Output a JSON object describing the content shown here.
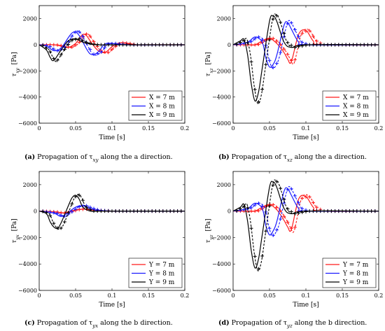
{
  "colors": {
    "red": "#ff1a1a",
    "blue": "#1a1aff",
    "black": "#000000"
  },
  "chart_data": [
    {
      "type": "line",
      "panel": "a",
      "caption_letter": "(a)",
      "caption_text": "Propagation of τ",
      "caption_sub": "xy",
      "caption_tail": " along the a direction.",
      "ylabel": "τ",
      "ylabel_sub": "xy",
      "ylabel_unit": "[Pa]",
      "xlabel": "Time [s]",
      "xlim": [
        0,
        0.2
      ],
      "ylim": [
        -6000,
        3000
      ],
      "xticks": [
        "0",
        "0.05",
        "0.1",
        "0.15",
        "0.2"
      ],
      "yticks": [
        "2000",
        "0",
        "−2000",
        "−4000",
        "−6000"
      ],
      "legend": "bottom-right",
      "linestyles": "solid = model, dashed with + = measured",
      "series": [
        {
          "name": "X = 7 m",
          "color": "red",
          "x": [
            0,
            0.02,
            0.03,
            0.04,
            0.05,
            0.055,
            0.06,
            0.065,
            0.07,
            0.08,
            0.09,
            0.1,
            0.11,
            0.12,
            0.13,
            0.15,
            0.2
          ],
          "y": [
            0,
            0,
            -100,
            -200,
            100,
            500,
            800,
            700,
            300,
            -400,
            -600,
            -150,
            150,
            100,
            0,
            0,
            0
          ]
        },
        {
          "name": "X = 8 m",
          "color": "blue",
          "x": [
            0,
            0.01,
            0.02,
            0.03,
            0.04,
            0.045,
            0.05,
            0.055,
            0.06,
            0.07,
            0.08,
            0.09,
            0.1,
            0.12,
            0.2
          ],
          "y": [
            0,
            -100,
            -450,
            -250,
            550,
            900,
            1000,
            700,
            200,
            -700,
            -600,
            50,
            100,
            0,
            0
          ]
        },
        {
          "name": "X = 9 m",
          "color": "black",
          "x": [
            0,
            0.01,
            0.015,
            0.02,
            0.03,
            0.04,
            0.05,
            0.06,
            0.07,
            0.08,
            0.1,
            0.2
          ],
          "y": [
            0,
            -400,
            -950,
            -1200,
            -400,
            300,
            450,
            200,
            50,
            0,
            0,
            0
          ]
        }
      ]
    },
    {
      "type": "line",
      "panel": "b",
      "caption_letter": "(b)",
      "caption_text": "Propagation of τ",
      "caption_sub": "xz",
      "caption_tail": " along the a direction.",
      "ylabel": "τ",
      "ylabel_sub": "xz",
      "ylabel_unit": "[Pa]",
      "xlabel": "Time [s]",
      "xlim": [
        0,
        0.2
      ],
      "ylim": [
        -6000,
        3000
      ],
      "xticks": [
        "0",
        "0.05",
        "0.1",
        "0.15",
        "0.2"
      ],
      "yticks": [
        "2000",
        "0",
        "−2000",
        "−4000",
        "−6000"
      ],
      "legend": "bottom-right",
      "series": [
        {
          "name": "X = 7 m",
          "color": "red",
          "x": [
            0,
            0.02,
            0.03,
            0.04,
            0.05,
            0.06,
            0.07,
            0.075,
            0.08,
            0.09,
            0.1,
            0.11,
            0.12,
            0.2
          ],
          "y": [
            0,
            0,
            0,
            300,
            500,
            100,
            -600,
            -1100,
            -1300,
            800,
            1100,
            300,
            0,
            0
          ]
        },
        {
          "name": "X = 8 m",
          "color": "blue",
          "x": [
            0,
            0.02,
            0.03,
            0.04,
            0.045,
            0.05,
            0.055,
            0.06,
            0.07,
            0.075,
            0.08,
            0.09,
            0.1,
            0.2
          ],
          "y": [
            0,
            200,
            600,
            200,
            -1000,
            -1700,
            -1500,
            -800,
            1500,
            1700,
            1200,
            200,
            0,
            0
          ]
        },
        {
          "name": "X = 9 m",
          "color": "black",
          "x": [
            0,
            0.01,
            0.015,
            0.02,
            0.025,
            0.03,
            0.035,
            0.04,
            0.05,
            0.055,
            0.06,
            0.07,
            0.08,
            0.1,
            0.2
          ],
          "y": [
            0,
            300,
            400,
            -800,
            -3000,
            -4300,
            -3600,
            -1800,
            1800,
            2200,
            1800,
            200,
            -200,
            0,
            0
          ]
        }
      ]
    },
    {
      "type": "line",
      "panel": "c",
      "caption_letter": "(c)",
      "caption_text": "Propagation of τ",
      "caption_sub": "yx",
      "caption_tail": " along the b direction.",
      "ylabel": "τ",
      "ylabel_sub": "yx",
      "ylabel_unit": "[Pa]",
      "xlabel": "Time [s]",
      "xlim": [
        0,
        0.2
      ],
      "ylim": [
        -6000,
        3000
      ],
      "xticks": [
        "0",
        "0.05",
        "0.1",
        "0.15",
        "0.2"
      ],
      "yticks": [
        "2000",
        "0",
        "−2000",
        "−4000",
        "−6000"
      ],
      "legend": "bottom-right",
      "series": [
        {
          "name": "Y = 7 m",
          "color": "red",
          "x": [
            0,
            0.02,
            0.03,
            0.04,
            0.05,
            0.06,
            0.07,
            0.08,
            0.1,
            0.2
          ],
          "y": [
            0,
            -50,
            -150,
            -50,
            100,
            150,
            100,
            50,
            0,
            0
          ]
        },
        {
          "name": "Y = 8 m",
          "color": "blue",
          "x": [
            0,
            0.02,
            0.03,
            0.04,
            0.05,
            0.06,
            0.07,
            0.08,
            0.1,
            0.2
          ],
          "y": [
            0,
            -150,
            -400,
            -100,
            300,
            400,
            200,
            50,
            0,
            0
          ]
        },
        {
          "name": "Y = 9 m",
          "color": "black",
          "x": [
            0,
            0.01,
            0.015,
            0.02,
            0.025,
            0.03,
            0.04,
            0.045,
            0.05,
            0.055,
            0.06,
            0.07,
            0.08,
            0.1,
            0.2
          ],
          "y": [
            0,
            -200,
            -800,
            -1200,
            -1300,
            -900,
            400,
            1000,
            1200,
            900,
            300,
            0,
            0,
            0,
            0
          ]
        }
      ]
    },
    {
      "type": "line",
      "panel": "d",
      "caption_letter": "(d)",
      "caption_text": "Propagation of τ",
      "caption_sub": "yz",
      "caption_tail": " along the b direction.",
      "ylabel": "τ",
      "ylabel_sub": "yz",
      "ylabel_unit": "[Pa]",
      "xlabel": "Time [s]",
      "xlim": [
        0,
        0.2
      ],
      "ylim": [
        -6000,
        3000
      ],
      "xticks": [
        "0",
        "0.05",
        "0.1",
        "0.15",
        "0.2"
      ],
      "yticks": [
        "2000",
        "0",
        "−2000",
        "−4000",
        "−6000"
      ],
      "legend": "bottom-right",
      "series": [
        {
          "name": "Y = 7 m",
          "color": "red",
          "x": [
            0,
            0.02,
            0.03,
            0.04,
            0.05,
            0.06,
            0.07,
            0.075,
            0.08,
            0.09,
            0.1,
            0.11,
            0.12,
            0.2
          ],
          "y": [
            0,
            0,
            0,
            300,
            500,
            100,
            -700,
            -1200,
            -1400,
            900,
            1100,
            300,
            0,
            0
          ]
        },
        {
          "name": "Y = 8 m",
          "color": "blue",
          "x": [
            0,
            0.02,
            0.03,
            0.04,
            0.045,
            0.05,
            0.055,
            0.06,
            0.07,
            0.075,
            0.08,
            0.09,
            0.1,
            0.2
          ],
          "y": [
            0,
            200,
            600,
            200,
            -1100,
            -1800,
            -1500,
            -800,
            1500,
            1700,
            1200,
            200,
            0,
            0
          ]
        },
        {
          "name": "Y = 9 m",
          "color": "black",
          "x": [
            0,
            0.01,
            0.015,
            0.02,
            0.025,
            0.03,
            0.035,
            0.04,
            0.05,
            0.055,
            0.06,
            0.07,
            0.08,
            0.1,
            0.2
          ],
          "y": [
            0,
            300,
            500,
            -800,
            -3000,
            -4300,
            -3600,
            -1800,
            1800,
            2200,
            1800,
            200,
            -200,
            0,
            0
          ]
        }
      ]
    }
  ]
}
